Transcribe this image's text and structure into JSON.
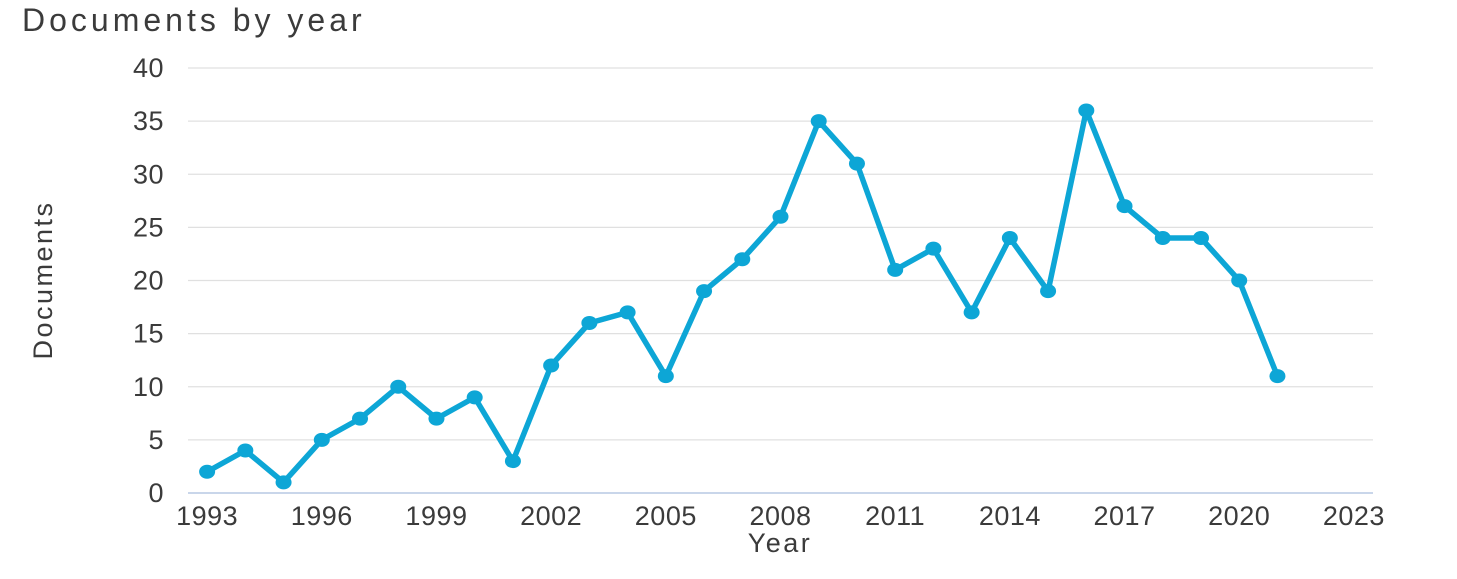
{
  "chart_data": {
    "type": "line",
    "title": "Documents by year",
    "xlabel": "Year",
    "ylabel": "Documents",
    "series_name": "Documents",
    "x": [
      1993,
      1994,
      1995,
      1996,
      1997,
      1998,
      1999,
      2000,
      2001,
      2002,
      2003,
      2004,
      2005,
      2006,
      2007,
      2008,
      2009,
      2010,
      2011,
      2012,
      2013,
      2014,
      2015,
      2016,
      2017,
      2018,
      2019,
      2020,
      2021
    ],
    "values": [
      2,
      4,
      1,
      5,
      7,
      10,
      7,
      9,
      3,
      12,
      16,
      17,
      11,
      19,
      22,
      26,
      35,
      31,
      21,
      23,
      17,
      24,
      19,
      36,
      27,
      24,
      24,
      20,
      11
    ],
    "x_axis": {
      "min": 1993,
      "max": 2023,
      "tick_step": 3,
      "ticks": [
        1993,
        1996,
        1999,
        2002,
        2005,
        2008,
        2011,
        2014,
        2017,
        2020,
        2023
      ]
    },
    "y_axis": {
      "min": 0,
      "max": 40,
      "tick_step": 5,
      "ticks": [
        0,
        5,
        10,
        15,
        20,
        25,
        30,
        35,
        40
      ]
    },
    "grid": "horizontal",
    "legend": "none",
    "colors": {
      "line": "#0da6d6",
      "marker": "#0da6d6",
      "gridline": "#e0e0e0",
      "zero_axis": "#c9d6ea",
      "text": "#3b3b3b",
      "background": "#ffffff"
    }
  }
}
